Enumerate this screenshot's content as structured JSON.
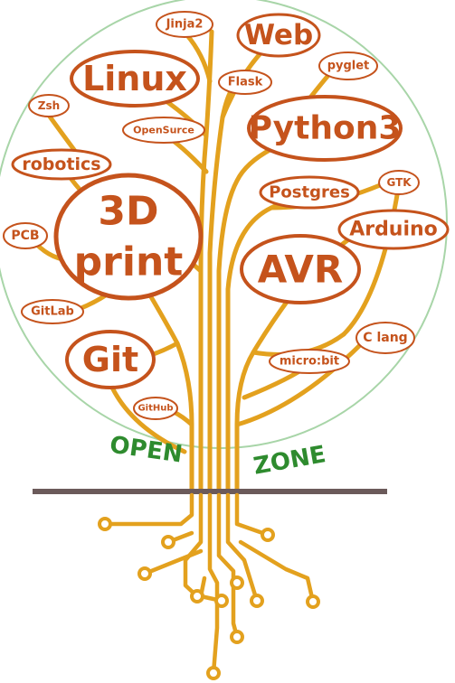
{
  "zone": {
    "left_word": "OPEN",
    "right_word": "ZONE"
  },
  "colors": {
    "bubble": "#c5531c",
    "branch": "#e3a11e",
    "circle": "#a8d5a8",
    "zone_text": "#2e8b2e",
    "ground": "#6b5a5a"
  },
  "nodes": [
    {
      "id": "jinja2",
      "label": "Jinja2"
    },
    {
      "id": "web",
      "label": "Web"
    },
    {
      "id": "linux",
      "label": "Linux"
    },
    {
      "id": "flask",
      "label": "Flask"
    },
    {
      "id": "pyglet",
      "label": "pyglet"
    },
    {
      "id": "zsh",
      "label": "Zsh"
    },
    {
      "id": "opensurce",
      "label": "OpenSurce"
    },
    {
      "id": "python3",
      "label": "Python3"
    },
    {
      "id": "robotics",
      "label": "robotics"
    },
    {
      "id": "gtk",
      "label": "GTK"
    },
    {
      "id": "postgres",
      "label": "Postgres"
    },
    {
      "id": "3dprint",
      "label": "3D",
      "label2": "print"
    },
    {
      "id": "arduino",
      "label": "Arduino"
    },
    {
      "id": "pcb",
      "label": "PCB"
    },
    {
      "id": "avr",
      "label": "AVR"
    },
    {
      "id": "gitlab",
      "label": "GitLab"
    },
    {
      "id": "clang",
      "label": "C lang"
    },
    {
      "id": "git",
      "label": "Git"
    },
    {
      "id": "microbit",
      "label": "micro:bit"
    },
    {
      "id": "github",
      "label": "GitHub"
    }
  ]
}
